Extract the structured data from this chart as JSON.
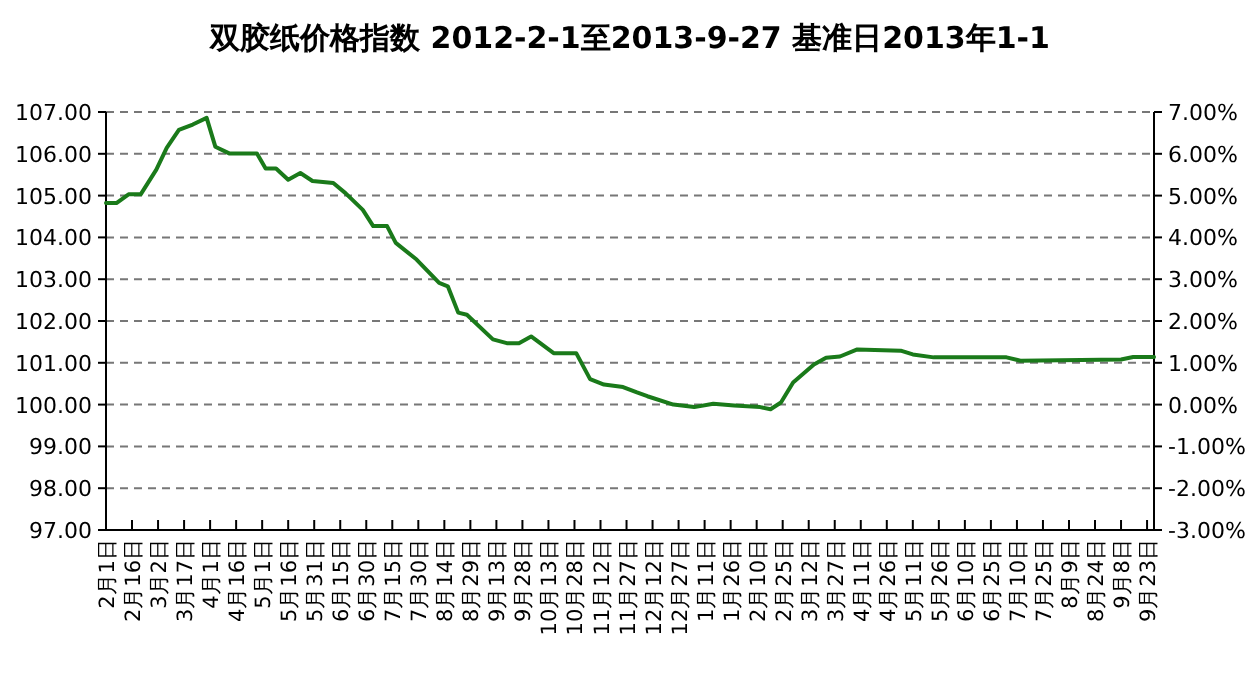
{
  "chart_data": {
    "type": "line",
    "title": "双胶纸价格指数  2012-2-1至2013-9-27    基准日2013年1-1",
    "x": [
      "2012-02-01",
      "2012-02-07",
      "2012-02-14",
      "2012-02-21",
      "2012-03-01",
      "2012-03-07",
      "2012-03-14",
      "2012-03-22",
      "2012-03-30",
      "2012-04-04",
      "2012-04-12",
      "2012-04-28",
      "2012-05-03",
      "2012-05-09",
      "2012-05-16",
      "2012-05-23",
      "2012-05-30",
      "2012-06-11",
      "2012-06-18",
      "2012-06-28",
      "2012-07-04",
      "2012-07-12",
      "2012-07-17",
      "2012-07-29",
      "2012-08-11",
      "2012-08-16",
      "2012-08-22",
      "2012-08-27",
      "2012-09-11",
      "2012-09-19",
      "2012-09-26",
      "2012-10-03",
      "2012-10-16",
      "2012-10-29",
      "2012-11-06",
      "2012-11-14",
      "2012-11-25",
      "2012-12-03",
      "2012-12-09",
      "2012-12-24",
      "2013-01-05",
      "2013-01-16",
      "2013-01-28",
      "2013-02-12",
      "2013-02-18",
      "2013-02-24",
      "2013-03-03",
      "2013-03-15",
      "2013-03-22",
      "2013-03-30",
      "2013-04-09",
      "2013-05-04",
      "2013-05-11",
      "2013-05-23",
      "2013-07-04",
      "2013-07-12",
      "2013-09-08",
      "2013-09-15",
      "2013-09-27"
    ],
    "series": [
      {
        "color": "#1a7a1a",
        "values": [
          104.82,
          104.82,
          105.03,
          105.03,
          105.62,
          106.14,
          106.57,
          106.7,
          106.86,
          106.17,
          106.01,
          106.01,
          105.65,
          105.65,
          105.38,
          105.54,
          105.35,
          105.3,
          105.06,
          104.66,
          104.27,
          104.27,
          103.87,
          103.47,
          102.91,
          102.83,
          102.2,
          102.15,
          101.56,
          101.47,
          101.47,
          101.63,
          101.23,
          101.23,
          100.61,
          100.48,
          100.42,
          100.29,
          100.2,
          100.0,
          99.94,
          100.02,
          99.98,
          99.94,
          99.89,
          100.05,
          100.53,
          100.96,
          101.12,
          101.15,
          101.32,
          101.29,
          101.2,
          101.13,
          101.13,
          101.05,
          101.08,
          101.14,
          101.14
        ]
      }
    ],
    "xlim": [
      "2012-02-01",
      "2013-09-27"
    ],
    "xticks": [
      {
        "value": "2012-02-01",
        "label": "2月1日"
      },
      {
        "value": "2012-02-16",
        "label": "2月16日"
      },
      {
        "value": "2012-03-02",
        "label": "3月2日"
      },
      {
        "value": "2012-03-17",
        "label": "3月17日"
      },
      {
        "value": "2012-04-01",
        "label": "4月1日"
      },
      {
        "value": "2012-04-16",
        "label": "4月16日"
      },
      {
        "value": "2012-05-01",
        "label": "5月1日"
      },
      {
        "value": "2012-05-16",
        "label": "5月16日"
      },
      {
        "value": "2012-05-31",
        "label": "5月31日"
      },
      {
        "value": "2012-06-15",
        "label": "6月15日"
      },
      {
        "value": "2012-06-30",
        "label": "6月30日"
      },
      {
        "value": "2012-07-15",
        "label": "7月15日"
      },
      {
        "value": "2012-07-30",
        "label": "7月30日"
      },
      {
        "value": "2012-08-14",
        "label": "8月14日"
      },
      {
        "value": "2012-08-29",
        "label": "8月29日"
      },
      {
        "value": "2012-09-13",
        "label": "9月13日"
      },
      {
        "value": "2012-09-28",
        "label": "9月28日"
      },
      {
        "value": "2012-10-13",
        "label": "10月13日"
      },
      {
        "value": "2012-10-28",
        "label": "10月28日"
      },
      {
        "value": "2012-11-12",
        "label": "11月12日"
      },
      {
        "value": "2012-11-27",
        "label": "11月27日"
      },
      {
        "value": "2012-12-12",
        "label": "12月12日"
      },
      {
        "value": "2012-12-27",
        "label": "12月27日"
      },
      {
        "value": "2013-01-11",
        "label": "1月11日"
      },
      {
        "value": "2013-01-26",
        "label": "1月26日"
      },
      {
        "value": "2013-02-10",
        "label": "2月10日"
      },
      {
        "value": "2013-02-25",
        "label": "2月25日"
      },
      {
        "value": "2013-03-12",
        "label": "3月12日"
      },
      {
        "value": "2013-03-27",
        "label": "3月27日"
      },
      {
        "value": "2013-04-11",
        "label": "4月11日"
      },
      {
        "value": "2013-04-26",
        "label": "4月26日"
      },
      {
        "value": "2013-05-11",
        "label": "5月11日"
      },
      {
        "value": "2013-05-26",
        "label": "5月26日"
      },
      {
        "value": "2013-06-10",
        "label": "6月10日"
      },
      {
        "value": "2013-06-25",
        "label": "6月25日"
      },
      {
        "value": "2013-07-10",
        "label": "7月10日"
      },
      {
        "value": "2013-07-25",
        "label": "7月25日"
      },
      {
        "value": "2013-08-09",
        "label": "8月9日"
      },
      {
        "value": "2013-08-24",
        "label": "8月24日"
      },
      {
        "value": "2013-09-08",
        "label": "9月8日"
      },
      {
        "value": "2013-09-23",
        "label": "9月23日"
      }
    ],
    "ylim": [
      97,
      107
    ],
    "yticks": [
      {
        "value": 97,
        "label": "97.00"
      },
      {
        "value": 98,
        "label": "98.00"
      },
      {
        "value": 99,
        "label": "99.00"
      },
      {
        "value": 100,
        "label": "100.00"
      },
      {
        "value": 101,
        "label": "101.00"
      },
      {
        "value": 102,
        "label": "102.00"
      },
      {
        "value": 103,
        "label": "103.00"
      },
      {
        "value": 104,
        "label": "104.00"
      },
      {
        "value": 105,
        "label": "105.00"
      },
      {
        "value": 106,
        "label": "106.00"
      },
      {
        "value": 107,
        "label": "107.00"
      }
    ],
    "y2lim": [
      -3,
      7
    ],
    "y2ticks": [
      {
        "value": -3,
        "label": "-3.00%"
      },
      {
        "value": -2,
        "label": "-2.00%"
      },
      {
        "value": -1,
        "label": "-1.00%"
      },
      {
        "value": 0,
        "label": "0.00%"
      },
      {
        "value": 1,
        "label": "1.00%"
      },
      {
        "value": 2,
        "label": "2.00%"
      },
      {
        "value": 3,
        "label": "3.00%"
      },
      {
        "value": 4,
        "label": "4.00%"
      },
      {
        "value": 5,
        "label": "5.00%"
      },
      {
        "value": 6,
        "label": "6.00%"
      },
      {
        "value": 7,
        "label": "7.00%"
      }
    ],
    "grid": "y",
    "line_style": "solid"
  }
}
